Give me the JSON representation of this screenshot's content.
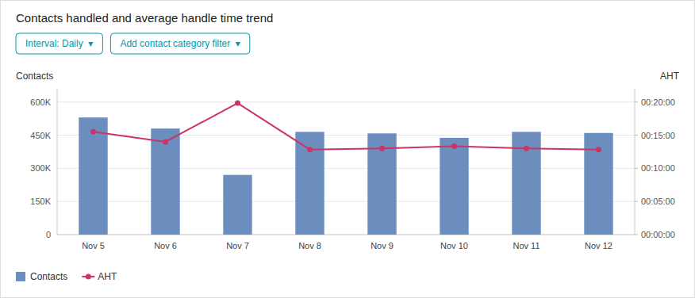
{
  "chart_data": {
    "type": "bar",
    "title": "Contacts handled and average handle time trend",
    "ylabel": "Contacts",
    "y2label": "AHT",
    "annotations": [
      "Interval: Daily  ▾",
      "Add contact category filter  ▾"
    ],
    "categories": [
      "Nov 5",
      "Nov 6",
      "Nov 7",
      "Nov 8",
      "Nov 9",
      "Nov 10",
      "Nov 11",
      "Nov 12"
    ],
    "series": [
      {
        "name": "Contacts",
        "type": "bar",
        "color": "#6c8ebf",
        "values": [
          530000,
          480000,
          270000,
          465000,
          458000,
          438000,
          465000,
          460000
        ]
      },
      {
        "name": "AHT",
        "type": "line",
        "axis": "y2",
        "color": "#cc3366",
        "marker": "circle",
        "values": [
          930,
          840,
          1190,
          770,
          780,
          800,
          780,
          770
        ]
      }
    ],
    "ylim": [
      0,
      660000
    ],
    "yticks": [
      0,
      {
        "value": 150000,
        "label": "150K"
      },
      {
        "value": 300000,
        "label": "300K"
      },
      {
        "value": 450000,
        "label": "450K"
      },
      {
        "value": 600000,
        "label": "600K"
      }
    ],
    "y2lim": [
      0,
      1320
    ],
    "y2ticks": [
      {
        "value": 0,
        "label": "00:00:00"
      },
      {
        "value": 300,
        "label": "00:05:00"
      },
      {
        "value": 600,
        "label": "00:10:00"
      },
      {
        "value": 900,
        "label": "00:15:00"
      },
      {
        "value": 1200,
        "label": "00:20:00"
      }
    ],
    "grid": true,
    "legend": "lower left"
  }
}
